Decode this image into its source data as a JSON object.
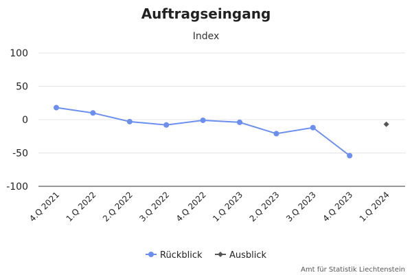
{
  "chart_data": {
    "type": "line",
    "title": "Auftragseingang",
    "subtitle": "Index",
    "categories": [
      "4.Q 2021",
      "1.Q 2022",
      "2.Q 2022",
      "3.Q 2022",
      "4.Q 2022",
      "1.Q 2023",
      "2.Q 2023",
      "3.Q 2023",
      "4.Q 2023",
      "1.Q 2024"
    ],
    "ylim": [
      -100,
      100
    ],
    "yticks": [
      100,
      50,
      0,
      -50,
      -100
    ],
    "grid": true,
    "legend_position": "bottom-center",
    "series": [
      {
        "name": "Rückblick",
        "color": "#6b8ff0",
        "marker": "circle",
        "values": [
          18,
          10,
          -3,
          -8,
          -1,
          -4,
          -21,
          -12,
          -54,
          null
        ]
      },
      {
        "name": "Ausblick",
        "color": "#555555",
        "marker": "diamond",
        "values": [
          null,
          null,
          null,
          null,
          null,
          null,
          null,
          null,
          null,
          -7
        ]
      }
    ],
    "credit": "Amt für Statistik Liechtenstein"
  }
}
